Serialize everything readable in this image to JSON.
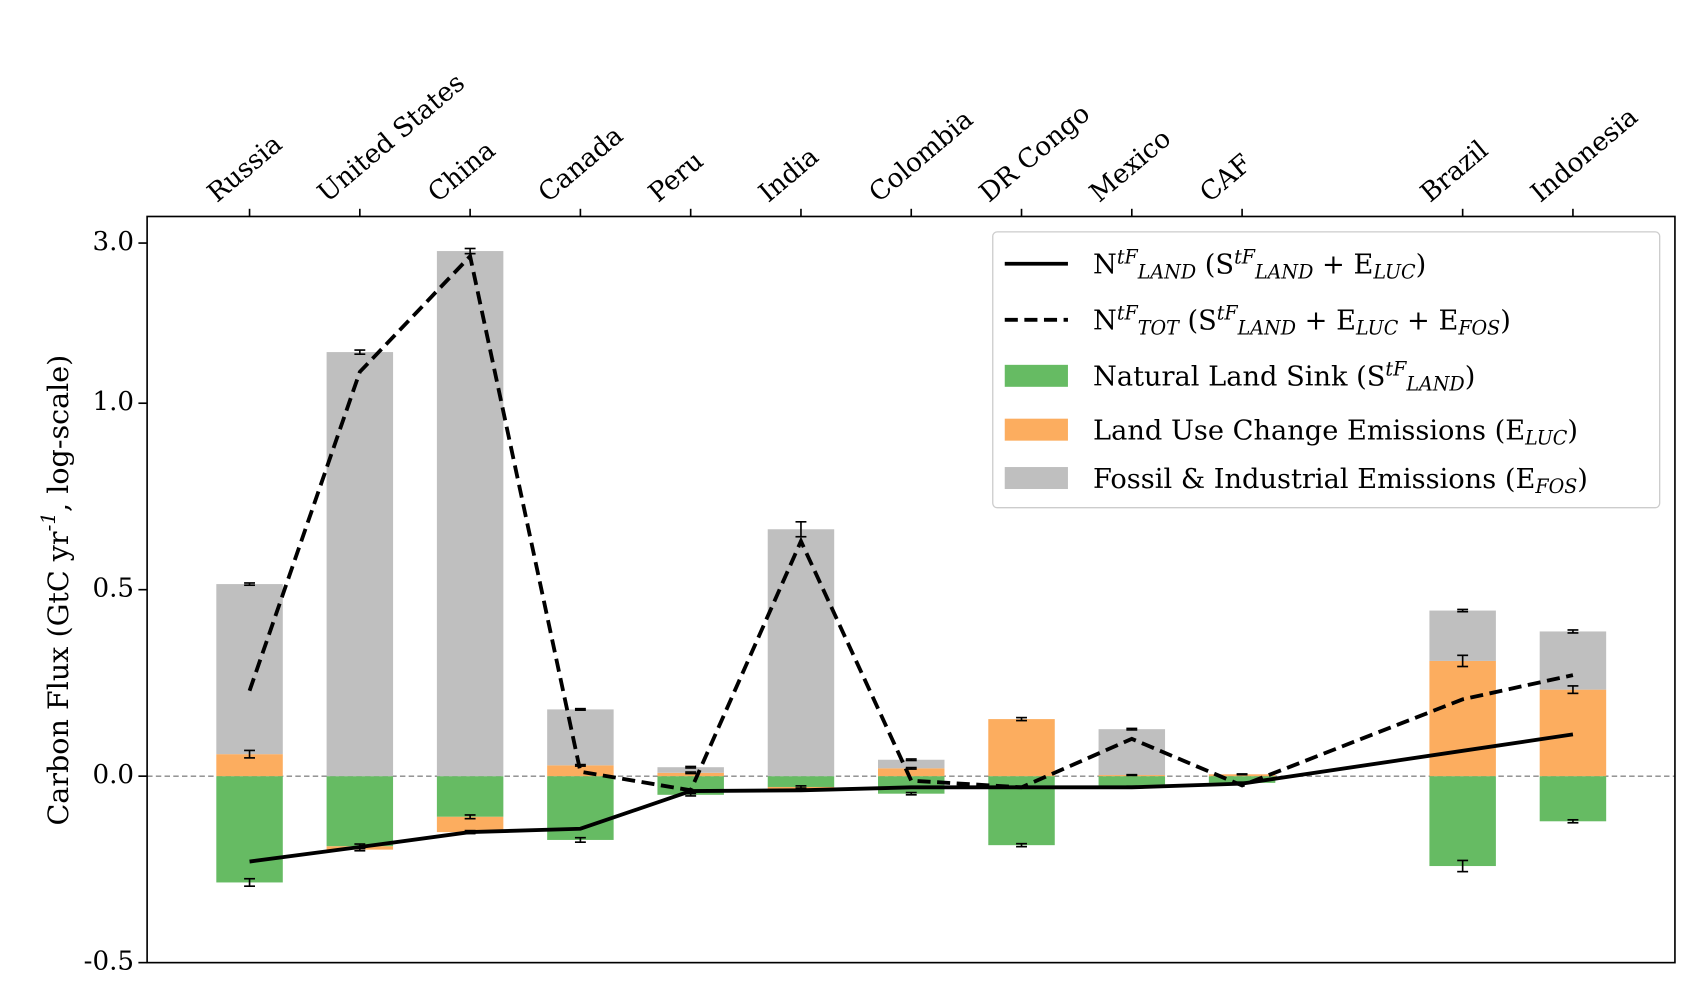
{
  "chart_data": {
    "type": "bar",
    "y_label": "Carbon Flux (GtC yr$^{-1}$, log-scale)",
    "yscale": "symlog",
    "linthresh": 1,
    "ylim": [
      -0.5,
      3.6
    ],
    "yticks": [
      {
        "value": 3,
        "label": "3.0"
      },
      {
        "value": 1,
        "label": "1.0"
      },
      0.5,
      {
        "value": 0,
        "label": "0.0"
      },
      -0.5
    ],
    "categories": [
      "Russia",
      "United States",
      "China",
      "Canada",
      "Peru",
      "India",
      "Colombia",
      "DR Congo",
      "Mexico",
      "CAF",
      "Brazil",
      "Indonesia"
    ],
    "x": [
      0,
      1,
      2,
      3,
      4,
      5,
      6,
      7,
      8,
      9,
      11,
      12
    ],
    "zero_line": true,
    "legend": "upper right",
    "series": [
      {
        "name": "N$^{tF}_{LAND}$ (S$^{tF}_{LAND}$ + E$_{LUC}$)",
        "type": "line",
        "style": "solid",
        "color": "#000000",
        "values": [
          -0.229,
          -0.19,
          -0.15,
          -0.141,
          -0.04,
          -0.038,
          -0.03,
          -0.03,
          -0.03,
          -0.02,
          0.068,
          0.112
        ]
      },
      {
        "name": "N$^{tF}_{TOT}$ (S$^{tF}_{LAND}$ + E$_{LUC}$ + E$_{FOS}$)",
        "type": "line",
        "style": "dashed",
        "color": "#000000",
        "values": [
          0.229,
          1.24,
          2.74,
          0.012,
          -0.038,
          0.63,
          -0.012,
          -0.03,
          0.1,
          -0.025,
          0.206,
          0.271
        ]
      },
      {
        "name": "Natural Land Sink (S$^{tF}_{LAND}$)",
        "type": "bar",
        "color": "#66bb63",
        "values": [
          -0.285,
          -0.188,
          -0.109,
          -0.171,
          -0.05,
          -0.029,
          -0.047,
          -0.185,
          -0.029,
          -0.018,
          -0.241,
          -0.121
        ],
        "errors": [
          0.01,
          0.006,
          0.005,
          0.006,
          0.003,
          0.003,
          0.003,
          0.004,
          0.002,
          0.002,
          0.015,
          0.004
        ]
      },
      {
        "name": "Land Use Change Emissions (E$_{LUC}$)",
        "type": "bar",
        "color": "#fcad5f",
        "values": [
          0.059,
          -0.009,
          -0.041,
          0.029,
          0.009,
          -0.006,
          0.021,
          0.153,
          0.003,
          0.005,
          0.309,
          0.232
        ],
        "errors": [
          0.01,
          0.003,
          0.004,
          0.002,
          0.002,
          0.002,
          0.002,
          0.004,
          0.001,
          0.001,
          0.015,
          0.01
        ]
      },
      {
        "name": "Fossil & Industrial Emissions (E$_{FOS}$)",
        "type": "bar",
        "color": "#bfbfbf",
        "values": [
          0.456,
          1.42,
          2.84,
          0.15,
          0.015,
          0.662,
          0.023,
          0,
          0.123,
          0,
          0.135,
          0.156
        ],
        "errors": [
          0.003,
          0.02,
          0.05,
          0.002,
          0.002,
          0.02,
          0.002,
          0,
          0.002,
          0,
          0.003,
          0.004
        ]
      }
    ]
  }
}
